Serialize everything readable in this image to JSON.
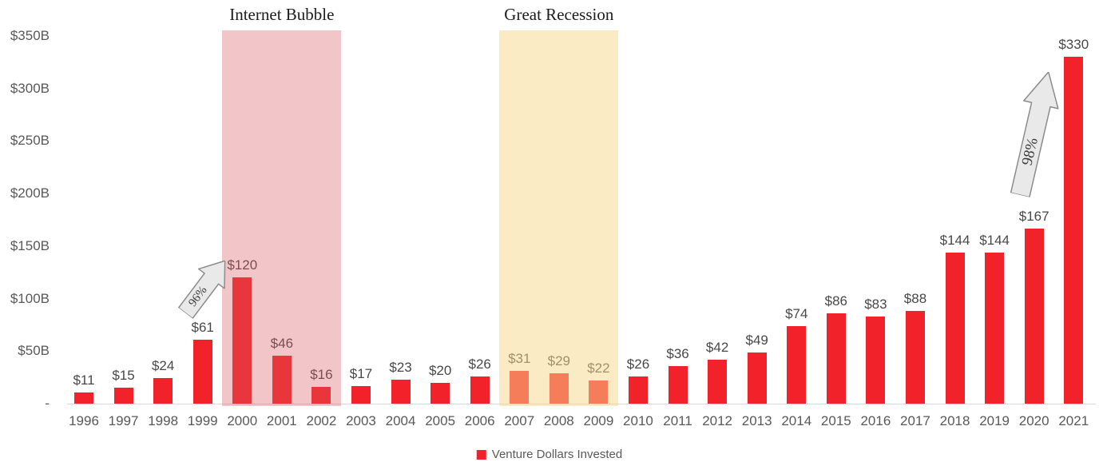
{
  "chart_data": {
    "type": "bar",
    "title": "",
    "xlabel": "",
    "ylabel": "",
    "ylim": [
      0,
      350
    ],
    "grid": false,
    "legend_position": "bottom-center",
    "categories": [
      "1996",
      "1997",
      "1998",
      "1999",
      "2000",
      "2001",
      "2002",
      "2003",
      "2004",
      "2005",
      "2006",
      "2007",
      "2008",
      "2009",
      "2010",
      "2011",
      "2012",
      "2013",
      "2014",
      "2015",
      "2016",
      "2017",
      "2018",
      "2019",
      "2020",
      "2021"
    ],
    "series": [
      {
        "name": "Venture Dollars Invested",
        "values": [
          11,
          15,
          24,
          61,
          120,
          46,
          16,
          17,
          23,
          20,
          26,
          31,
          29,
          22,
          26,
          36,
          42,
          49,
          74,
          86,
          83,
          88,
          144,
          144,
          167,
          330
        ]
      }
    ],
    "value_prefix": "$",
    "y_axis": {
      "ticks": [
        {
          "label": "$350B",
          "value": 350
        },
        {
          "label": "$300B",
          "value": 300
        },
        {
          "label": "$250B",
          "value": 250
        },
        {
          "label": "$200B",
          "value": 200
        },
        {
          "label": "$150B",
          "value": 150
        },
        {
          "label": "$100B",
          "value": 100
        },
        {
          "label": "$50B",
          "value": 50
        },
        {
          "label": "-",
          "value": 0
        }
      ]
    },
    "regions": [
      {
        "label": "Internet Bubble",
        "from_category": "2000",
        "to_category": "2002",
        "fill": "rgba(219,92,97,0.35)"
      },
      {
        "label": "Great Recession",
        "from_category": "2007",
        "to_category": "2009",
        "fill": "rgba(248,216,138,0.5)"
      }
    ],
    "annotations": [
      {
        "label": "96%",
        "from_category": "1999",
        "to_category": "2000",
        "shape": "up-arrow"
      },
      {
        "label": "98%",
        "from_category": "2020",
        "to_category": "2021",
        "shape": "up-arrow"
      }
    ],
    "colors": {
      "bar": "#F2222A",
      "arrow_fill": "#E9E9E9",
      "arrow_stroke": "#8C8C8C",
      "axis_line": "#d9d9d9"
    },
    "legend": {
      "label": "Venture Dollars Invested",
      "color": "#F2222A"
    }
  }
}
